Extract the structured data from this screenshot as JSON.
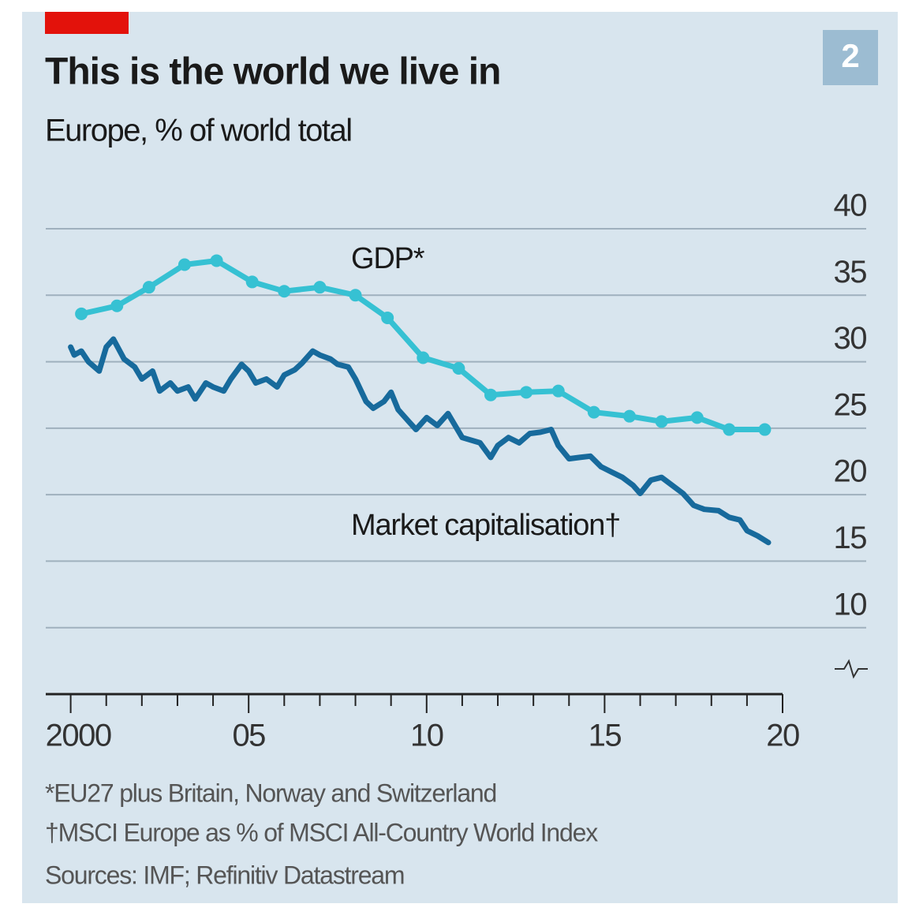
{
  "chart_data": {
    "type": "line",
    "title": "This is the world we live in",
    "subtitle": "Europe, % of world total",
    "badge": "2",
    "xlim": [
      1999.3,
      2020
    ],
    "xticks": [
      {
        "value": 2000,
        "label": "2000"
      },
      {
        "value": 2005,
        "label": "05"
      },
      {
        "value": 2010,
        "label": "10"
      },
      {
        "value": 2015,
        "label": "15"
      },
      {
        "value": 2020,
        "label": "20"
      }
    ],
    "xminor_ticks": [
      2001,
      2002,
      2003,
      2004,
      2006,
      2007,
      2008,
      2009,
      2011,
      2012,
      2013,
      2014,
      2016,
      2017,
      2018,
      2019
    ],
    "ylim": [
      5,
      40
    ],
    "yticks": [
      10,
      15,
      20,
      25,
      30,
      35,
      40
    ],
    "grid": true,
    "series": [
      {
        "name": "GDP*",
        "color": "#36c1d3",
        "markers": true,
        "x": [
          2000.3,
          2001.3,
          2002.2,
          2003.2,
          2004.1,
          2005.1,
          2006.0,
          2007.0,
          2008.0,
          2008.9,
          2009.9,
          2010.9,
          2011.8,
          2012.8,
          2013.7,
          2014.7,
          2015.7,
          2016.6,
          2017.6,
          2018.5,
          2019.5
        ],
        "values": [
          33.6,
          34.2,
          35.6,
          37.3,
          37.6,
          36.0,
          35.3,
          35.6,
          35.0,
          33.3,
          30.3,
          29.5,
          27.5,
          27.7,
          27.8,
          26.2,
          25.9,
          25.5,
          25.8,
          24.9,
          24.9
        ]
      },
      {
        "name": "Market capitalisation†",
        "color": "#176a9c",
        "markers": false,
        "x": [
          2000.0,
          2000.1,
          2000.3,
          2000.5,
          2000.8,
          2001.0,
          2001.2,
          2001.5,
          2001.8,
          2002.0,
          2002.3,
          2002.5,
          2002.8,
          2003.0,
          2003.3,
          2003.5,
          2003.8,
          2004.0,
          2004.3,
          2004.5,
          2004.8,
          2005.0,
          2005.2,
          2005.5,
          2005.8,
          2006.0,
          2006.3,
          2006.5,
          2006.8,
          2007.0,
          2007.3,
          2007.5,
          2007.8,
          2008.0,
          2008.3,
          2008.5,
          2008.8,
          2009.0,
          2009.2,
          2009.5,
          2009.7,
          2010.0,
          2010.3,
          2010.6,
          2010.8,
          2011.0,
          2011.5,
          2011.8,
          2012.0,
          2012.3,
          2012.6,
          2012.9,
          2013.2,
          2013.5,
          2013.7,
          2014.0,
          2014.3,
          2014.6,
          2014.9,
          2015.2,
          2015.5,
          2015.8,
          2016.0,
          2016.3,
          2016.6,
          2016.9,
          2017.2,
          2017.5,
          2017.8,
          2018.2,
          2018.5,
          2018.8,
          2019.0,
          2019.3,
          2019.6
        ],
        "values": [
          31.1,
          30.5,
          30.8,
          30.0,
          29.3,
          31.1,
          31.7,
          30.2,
          29.6,
          28.7,
          29.3,
          27.8,
          28.4,
          27.8,
          28.1,
          27.2,
          28.4,
          28.1,
          27.8,
          28.7,
          29.8,
          29.3,
          28.4,
          28.7,
          28.1,
          29.0,
          29.4,
          29.9,
          30.8,
          30.5,
          30.2,
          29.8,
          29.6,
          28.7,
          27.0,
          26.5,
          27.0,
          27.7,
          26.4,
          25.5,
          24.9,
          25.8,
          25.2,
          26.1,
          25.2,
          24.3,
          23.9,
          22.8,
          23.7,
          24.3,
          23.9,
          24.6,
          24.7,
          24.9,
          23.7,
          22.7,
          22.8,
          22.9,
          22.1,
          21.7,
          21.3,
          20.7,
          20.1,
          21.1,
          21.3,
          20.7,
          20.1,
          19.2,
          18.9,
          18.8,
          18.3,
          18.1,
          17.3,
          16.9,
          16.4
        ]
      }
    ],
    "footnotes": [
      "*EU27 plus Britain, Norway and Switzerland",
      "†MSCI Europe as % of MSCI All-Country World Index",
      "Sources: IMF; Refinitiv Datastream"
    ]
  }
}
